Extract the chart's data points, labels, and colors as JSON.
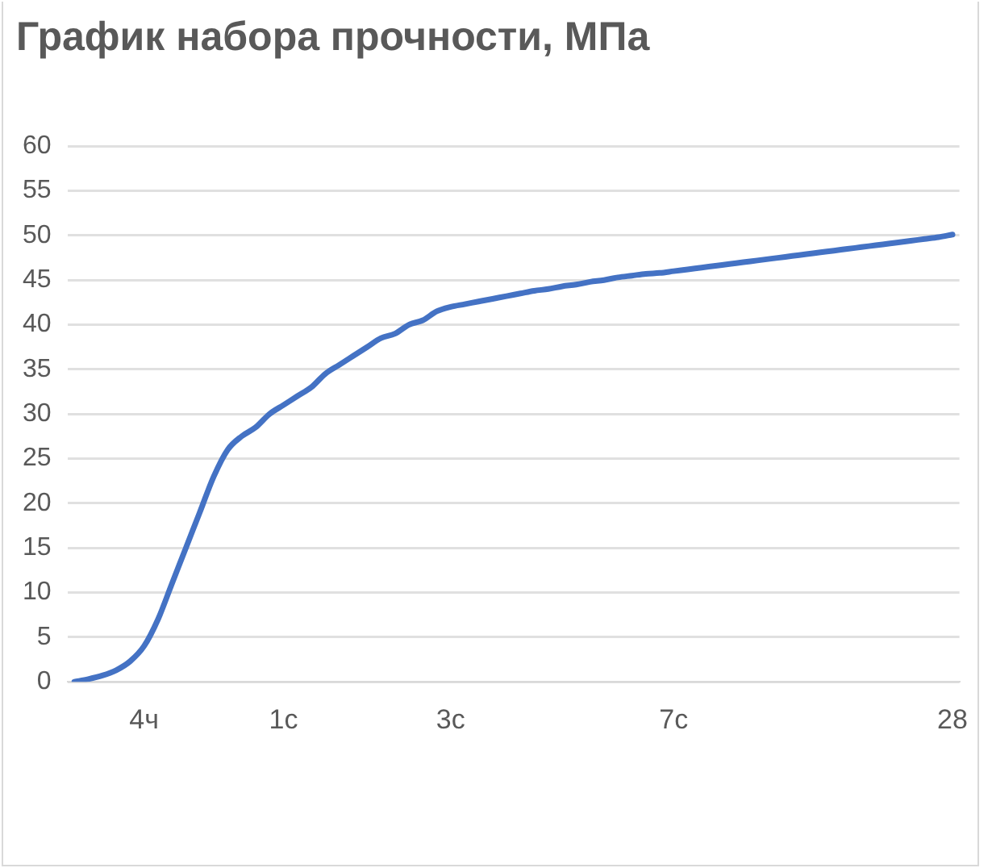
{
  "chart_data": {
    "type": "line",
    "title": "График набора прочности, МПа",
    "categories": [
      null,
      null,
      null,
      null,
      null,
      "4ч",
      null,
      null,
      null,
      null,
      null,
      null,
      null,
      null,
      null,
      "1с",
      null,
      null,
      null,
      null,
      null,
      null,
      null,
      null,
      null,
      null,
      null,
      "3с",
      null,
      null,
      null,
      null,
      null,
      null,
      null,
      null,
      null,
      null,
      null,
      null,
      null,
      null,
      null,
      "7с",
      null,
      null,
      null,
      null,
      null,
      null,
      null,
      null,
      null,
      null,
      null,
      null,
      null,
      null,
      null,
      null,
      null,
      null,
      null,
      "28"
    ],
    "series": [
      {
        "color": "#4472c4",
        "values": [
          0,
          0.3,
          0.7,
          1.3,
          2.3,
          4,
          7,
          11,
          15,
          19,
          23,
          26,
          27.5,
          28.5,
          30,
          31,
          32,
          33,
          34.5,
          35.5,
          36.5,
          37.5,
          38.5,
          39,
          40,
          40.5,
          41.5,
          42,
          42.3,
          42.6,
          42.9,
          43.2,
          43.5,
          43.8,
          44,
          44.3,
          44.5,
          44.8,
          45,
          45.3,
          45.5,
          45.7,
          45.8,
          46,
          46.2,
          46.4,
          46.6,
          46.8,
          47,
          47.2,
          47.4,
          47.6,
          47.8,
          48,
          48.2,
          48.4,
          48.6,
          48.8,
          49,
          49.2,
          49.4,
          49.6,
          49.8,
          50.1
        ]
      }
    ],
    "ylim": [
      0,
      60
    ],
    "yticks": [
      0,
      5,
      10,
      15,
      20,
      25,
      30,
      35,
      40,
      45,
      50,
      55,
      60
    ],
    "grid": "y",
    "legend": false,
    "marker": "none",
    "line_style": "solid"
  }
}
